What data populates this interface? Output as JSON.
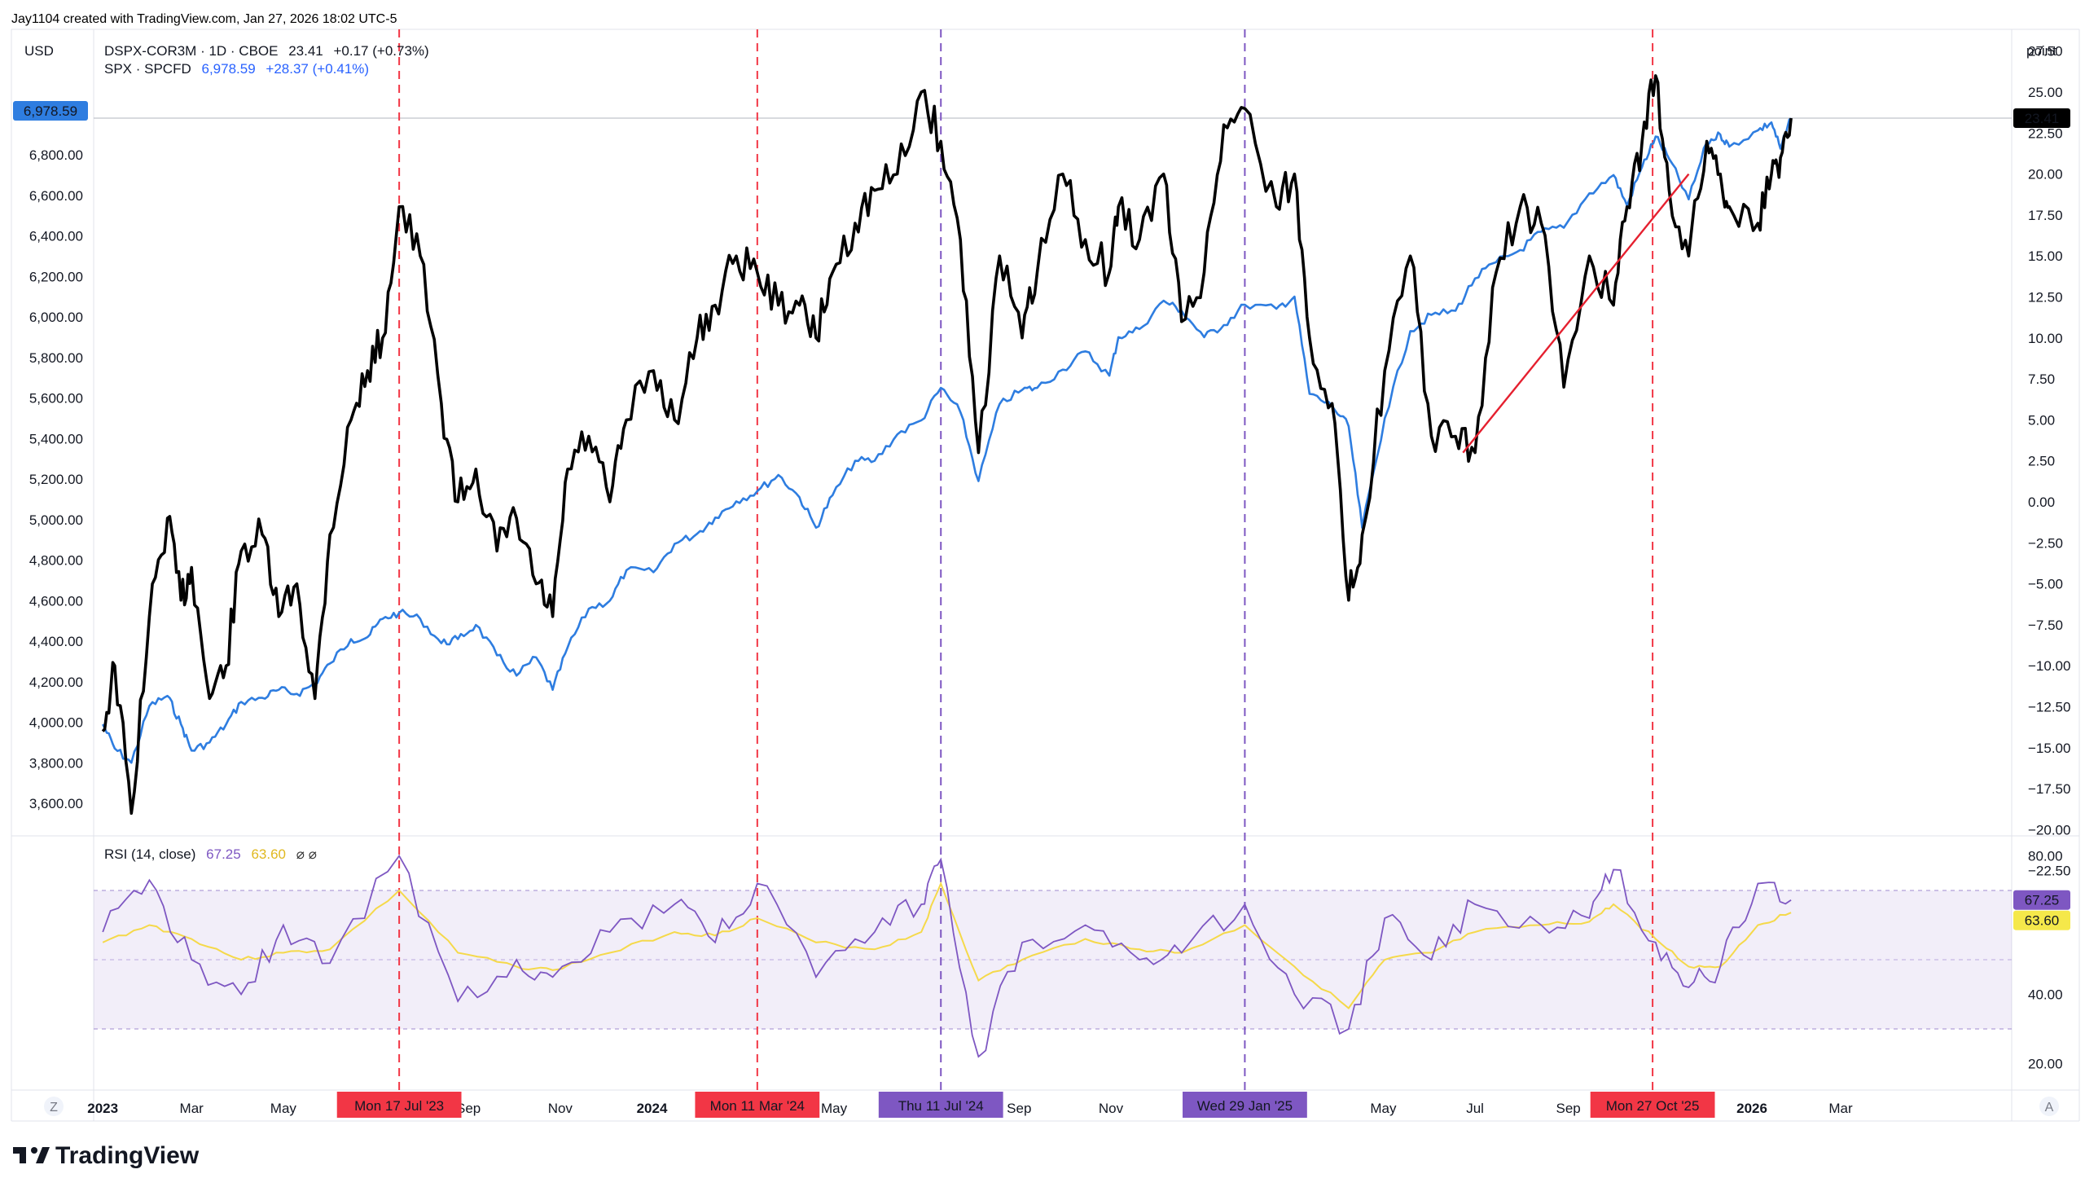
{
  "header": {
    "credit": "Jay1104 created with TradingView.com, Jan 27, 2026 18:02 UTC-5"
  },
  "top_left": {
    "currency": "USD"
  },
  "top_right": {
    "unit": "point"
  },
  "legend": {
    "series1": {
      "name": "DSPX-COR3M · 1D · CBOE",
      "value": "23.41",
      "change": "+0.17 (+0.73%)",
      "color": "#000000"
    },
    "series2": {
      "name": "SPX · SPCFD",
      "value": "6,978.59",
      "change": "+28.37 (+0.41%)",
      "color": "#2962ff"
    },
    "rsi": {
      "label": "RSI (14, close)",
      "v1": "67.25",
      "v2": "63.60",
      "icons": "⌀ ⌀"
    }
  },
  "badges": {
    "spx_last": "6,978.59",
    "dspx_last": "23.41",
    "rsi_last": "67.25",
    "rsi_ma_last": "63.60"
  },
  "footer": {
    "brand": "TradingView",
    "left_btn": "Z",
    "right_btn": "A"
  },
  "colors": {
    "spx": "#2e7de0",
    "dspx": "#000000",
    "rsi": "#7e57c2",
    "rsi_ma": "#f5d94a",
    "red_marker": "#f23645",
    "purple_marker": "#7e57c2",
    "trend": "#e5202f"
  },
  "chart_data": [
    {
      "type": "line",
      "x": [
        "2023-01-01",
        "2023-01-09",
        "2023-01-20",
        "2023-02-01",
        "2023-02-13",
        "2023-02-22",
        "2023-03-01",
        "2023-03-13",
        "2023-03-24",
        "2023-04-03",
        "2023-04-17",
        "2023-04-28",
        "2023-05-10",
        "2023-05-22",
        "2023-06-01",
        "2023-06-15",
        "2023-06-26",
        "2023-07-06",
        "2023-07-17",
        "2023-07-31",
        "2023-08-14",
        "2023-08-25",
        "2023-09-06",
        "2023-09-20",
        "2023-10-03",
        "2023-10-16",
        "2023-10-27",
        "2023-11-06",
        "2023-11-20",
        "2023-12-04",
        "2023-12-15",
        "2024-01-02",
        "2024-01-16",
        "2024-01-31",
        "2024-02-12",
        "2024-02-26",
        "2024-03-11",
        "2024-03-25",
        "2024-04-08",
        "2024-04-19",
        "2024-04-30",
        "2024-05-15",
        "2024-05-28",
        "2024-06-12",
        "2024-06-28",
        "2024-07-11",
        "2024-07-24",
        "2024-08-05",
        "2024-08-19",
        "2024-09-03",
        "2024-09-13",
        "2024-09-30",
        "2024-10-15",
        "2024-10-31",
        "2024-11-06",
        "2024-11-20",
        "2024-12-06",
        "2024-12-18",
        "2025-01-02",
        "2025-01-15",
        "2025-01-29",
        "2025-02-19",
        "2025-03-03",
        "2025-03-13",
        "2025-03-28",
        "2025-04-08",
        "2025-04-17",
        "2025-05-02",
        "2025-05-19",
        "2025-06-02",
        "2025-06-18",
        "2025-07-01",
        "2025-07-15",
        "2025-07-31",
        "2025-08-14",
        "2025-08-29",
        "2025-09-15",
        "2025-10-01",
        "2025-10-10",
        "2025-10-20",
        "2025-10-29",
        "2025-11-07",
        "2025-11-20",
        "2025-12-02",
        "2025-12-11",
        "2025-12-17",
        "2026-01-05",
        "2026-01-14",
        "2026-01-20",
        "2026-01-27"
      ],
      "series": [
        {
          "name": "SPX · SPCFD",
          "values": [
            3990,
            3870,
            3800,
            4080,
            4130,
            3990,
            3860,
            3900,
            3990,
            4100,
            4120,
            4160,
            4140,
            4190,
            4290,
            4410,
            4420,
            4510,
            4540,
            4510,
            4390,
            4410,
            4480,
            4330,
            4230,
            4320,
            4160,
            4370,
            4560,
            4600,
            4750,
            4740,
            4880,
            4930,
            5010,
            5090,
            5140,
            5220,
            5110,
            4960,
            5120,
            5290,
            5290,
            5420,
            5490,
            5650,
            5530,
            5190,
            5570,
            5640,
            5650,
            5740,
            5830,
            5710,
            5900,
            5940,
            6080,
            6030,
            5900,
            5960,
            6060,
            6040,
            6100,
            5620,
            5560,
            5460,
            4960,
            5500,
            5930,
            6010,
            6030,
            6190,
            6270,
            6330,
            6420,
            6440,
            6610,
            6700,
            6550,
            6740,
            6890,
            6780,
            6580,
            6860,
            6900,
            6840,
            6920,
            6960,
            6830,
            6978.59
          ]
        },
        {
          "name": "DSPX-COR3M · 1D · CBOE",
          "values": [
            -14,
            -10,
            -19,
            -7,
            -1,
            -6,
            -4,
            -12,
            -10,
            -3,
            -2,
            -7,
            -5,
            -12,
            -2,
            5,
            8,
            10,
            18,
            15,
            6,
            0,
            2,
            -3,
            -1,
            -5,
            -7,
            2,
            4,
            0,
            5,
            8,
            5,
            10,
            12,
            15,
            14,
            12,
            12,
            10,
            14,
            17,
            19,
            20,
            25,
            22,
            16,
            3,
            15,
            10,
            14,
            20,
            16,
            14,
            18,
            16,
            20,
            11,
            14,
            23,
            24,
            18,
            20,
            10,
            6,
            -6,
            -2,
            8,
            15,
            4,
            4,
            3,
            14,
            18,
            17,
            7,
            15,
            12,
            18,
            22,
            26,
            19,
            15,
            22,
            20,
            18,
            17,
            20,
            21,
            23.41
          ]
        }
      ]
    },
    {
      "type": "line",
      "title": "RSI (14, close)",
      "x": [
        "2023-01-01",
        "2023-02-01",
        "2023-03-01",
        "2023-04-03",
        "2023-05-01",
        "2023-06-01",
        "2023-07-17",
        "2023-08-25",
        "2023-10-03",
        "2023-10-27",
        "2023-12-04",
        "2024-01-16",
        "2024-02-12",
        "2024-03-11",
        "2024-04-19",
        "2024-05-28",
        "2024-06-28",
        "2024-07-11",
        "2024-08-05",
        "2024-09-03",
        "2024-10-15",
        "2024-11-20",
        "2024-12-18",
        "2025-01-29",
        "2025-03-03",
        "2025-04-08",
        "2025-05-02",
        "2025-06-02",
        "2025-07-01",
        "2025-08-14",
        "2025-09-15",
        "2025-10-01",
        "2025-10-29",
        "2025-11-20",
        "2025-12-11",
        "2026-01-05",
        "2026-01-27"
      ],
      "series": [
        {
          "name": "RSI",
          "values": [
            58,
            73,
            50,
            40,
            60,
            49,
            80,
            38,
            50,
            45,
            58,
            66,
            55,
            72,
            45,
            58,
            66,
            79,
            22,
            55,
            60,
            50,
            52,
            66,
            40,
            30,
            62,
            50,
            66,
            60,
            62,
            76,
            55,
            42,
            48,
            72,
            67.25
          ]
        },
        {
          "name": "RSI MA",
          "values": [
            55,
            60,
            56,
            50,
            52,
            53,
            70,
            52,
            48,
            47,
            52,
            58,
            57,
            62,
            55,
            53,
            58,
            72,
            44,
            50,
            56,
            53,
            52,
            60,
            48,
            36,
            50,
            52,
            58,
            60,
            61,
            66,
            56,
            48,
            48,
            60,
            63.6
          ]
        }
      ],
      "ylim": [
        15,
        82
      ],
      "bands": [
        30,
        50,
        70
      ]
    }
  ],
  "axes": {
    "left_ticks": [
      "6,800.00",
      "6,600.00",
      "6,400.00",
      "6,200.00",
      "6,000.00",
      "5,800.00",
      "5,600.00",
      "5,400.00",
      "5,200.00",
      "5,000.00",
      "4,800.00",
      "4,600.00",
      "4,400.00",
      "4,200.00",
      "4,000.00",
      "3,800.00",
      "3,600.00"
    ],
    "right_ticks": [
      "27.50",
      "25.00",
      "22.50",
      "20.00",
      "17.50",
      "15.00",
      "12.50",
      "10.00",
      "7.50",
      "5.00",
      "2.50",
      "0.00",
      "−2.50",
      "−5.00",
      "−7.50",
      "−10.00",
      "−12.50",
      "−15.00",
      "−17.50",
      "−20.00",
      "−22.50"
    ],
    "rsi_ticks": [
      "80.00",
      "40.00",
      "20.00"
    ],
    "x_labels": [
      {
        "label": "2023",
        "bold": true,
        "date": "2023-01-01"
      },
      {
        "label": "Mar",
        "date": "2023-03-01"
      },
      {
        "label": "May",
        "date": "2023-05-01"
      },
      {
        "label": "Sep",
        "date": "2023-09-01"
      },
      {
        "label": "Nov",
        "date": "2023-11-01"
      },
      {
        "label": "2024",
        "bold": true,
        "date": "2024-01-01"
      },
      {
        "label": "May",
        "date": "2024-05-01"
      },
      {
        "label": "Sep",
        "date": "2024-09-01"
      },
      {
        "label": "Nov",
        "date": "2024-11-01"
      },
      {
        "label": "May",
        "date": "2025-05-01"
      },
      {
        "label": "Jul",
        "date": "2025-07-01"
      },
      {
        "label": "Sep",
        "date": "2025-09-01"
      },
      {
        "label": "2026",
        "bold": true,
        "date": "2026-01-01"
      },
      {
        "label": "Mar",
        "date": "2026-03-01"
      }
    ]
  },
  "markers": [
    {
      "label": "Mon 17 Jul '23",
      "date": "2023-07-17",
      "kind": "red"
    },
    {
      "label": "Mon 11 Mar '24",
      "date": "2024-03-11",
      "kind": "red"
    },
    {
      "label": "Thu 11 Jul '24",
      "date": "2024-07-11",
      "kind": "purple"
    },
    {
      "label": "Wed 29 Jan '25",
      "date": "2025-01-29",
      "kind": "purple"
    },
    {
      "label": "Mon 27 Oct '25",
      "date": "2025-10-27",
      "kind": "red"
    }
  ],
  "trendline": {
    "from": {
      "date": "2025-06-23",
      "value": 3
    },
    "to": {
      "date": "2025-11-20",
      "value": 20
    }
  }
}
